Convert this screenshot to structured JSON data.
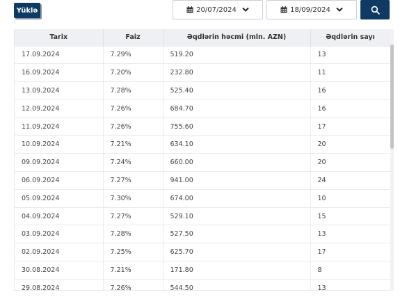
{
  "toolbar": {
    "download_label": "Yüklə",
    "date_from": "20/07/2024",
    "date_to": "18/09/2024"
  },
  "table": {
    "headers": [
      "Tarix",
      "Faiz",
      "Əqdlərin həcmi (mln. AZN)",
      "Əqdlərin sayı"
    ],
    "rows": [
      [
        "17.09.2024",
        "7.29%",
        "519.20",
        "13"
      ],
      [
        "16.09.2024",
        "7.20%",
        "232.80",
        "11"
      ],
      [
        "13.09.2024",
        "7.28%",
        "525.40",
        "16"
      ],
      [
        "12.09.2024",
        "7.26%",
        "684.70",
        "16"
      ],
      [
        "11.09.2024",
        "7.26%",
        "755.60",
        "17"
      ],
      [
        "10.09.2024",
        "7.21%",
        "634.10",
        "20"
      ],
      [
        "09.09.2024",
        "7.24%",
        "660.00",
        "20"
      ],
      [
        "06.09.2024",
        "7.27%",
        "941.00",
        "24"
      ],
      [
        "05.09.2024",
        "7.30%",
        "674.00",
        "10"
      ],
      [
        "04.09.2024",
        "7.27%",
        "529.10",
        "15"
      ],
      [
        "03.09.2024",
        "7.28%",
        "527.50",
        "13"
      ],
      [
        "02.09.2024",
        "7.25%",
        "625.70",
        "17"
      ],
      [
        "30.08.2024",
        "7.21%",
        "171.80",
        "8"
      ],
      [
        "29.08.2024",
        "7.26%",
        "544.50",
        "13"
      ]
    ]
  },
  "colors": {
    "primary": "#0f3a63",
    "header_bg": "#eef0f3"
  },
  "icons": {
    "calendar": "calendar-icon",
    "chevron": "chevron-down-icon",
    "search": "search-icon"
  }
}
